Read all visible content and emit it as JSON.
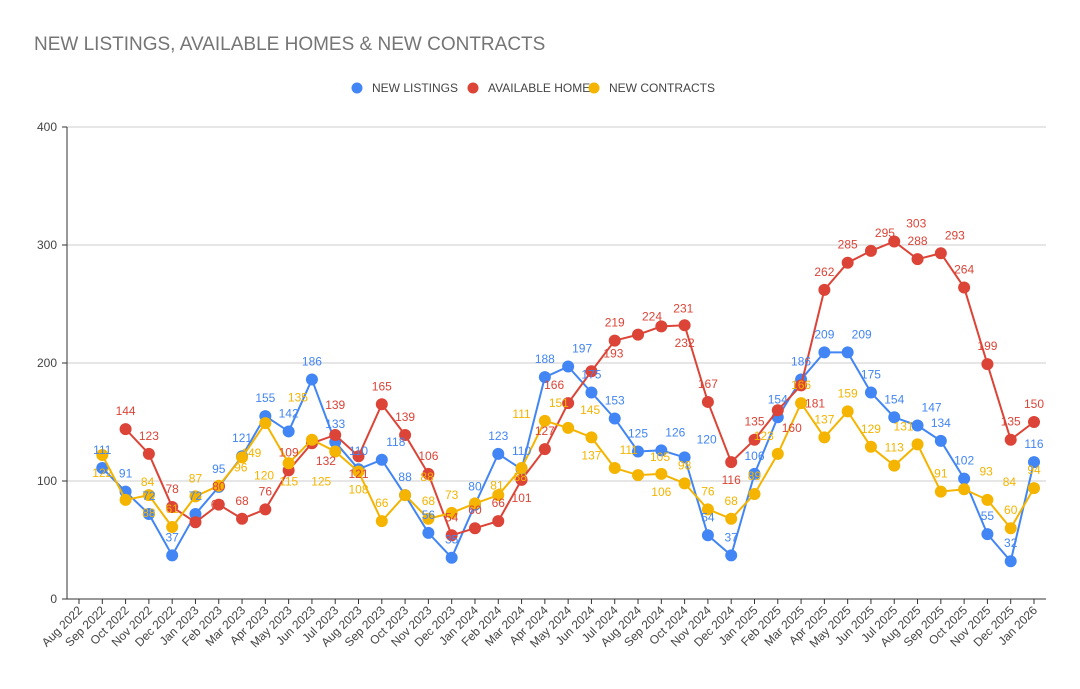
{
  "chart_data": {
    "type": "line",
    "title": "NEW LISTINGS, AVAILABLE HOMES & NEW CONTRACTS",
    "xlabel": "",
    "ylabel": "",
    "ylim": [
      0,
      400
    ],
    "yticks": [
      0,
      100,
      200,
      300,
      400
    ],
    "grid": true,
    "legend": "top-center",
    "categories": [
      "Aug 2022",
      "Sep 2022",
      "Oct 2022",
      "Nov 2022",
      "Dec 2022",
      "Jan 2023",
      "Feb 2023",
      "Mar 2023",
      "Apr 2023",
      "May 2023",
      "Jun 2023",
      "Jul 2023",
      "Aug 2023",
      "Sep 2023",
      "Oct 2023",
      "Nov 2023",
      "Dec 2023",
      "Jan 2024",
      "Feb 2024",
      "Mar 2024",
      "Apr 2024",
      "May 2024",
      "Jun 2024",
      "Jul 2024",
      "Aug 2024",
      "Sep 2024",
      "Oct 2024",
      "Nov 2024",
      "Dec 2024",
      "Jan 2025",
      "Feb 2025",
      "Mar 2025",
      "Apr 2025",
      "May 2025",
      "Jun 2025",
      "Jul 2025",
      "Aug 2025",
      "Sep 2025",
      "Oct 2025",
      "Nov 2025",
      "Dec 2025",
      "Jan 2026"
    ],
    "series": [
      {
        "name": "NEW LISTINGS",
        "color": "#4285f4",
        "values": [
          null,
          111,
          91,
          72,
          37,
          72,
          95,
          121,
          155,
          142,
          186,
          133,
          110,
          118,
          88,
          56,
          35,
          80,
          123,
          110,
          188,
          197,
          175,
          153,
          125,
          126,
          120,
          54,
          37,
          106,
          154,
          186,
          209,
          209,
          175,
          154,
          147,
          134,
          102,
          55,
          32,
          116
        ]
      },
      {
        "name": "AVAILABLE HOMES",
        "color": "#db4437",
        "values": [
          null,
          null,
          144,
          123,
          78,
          65,
          80,
          68,
          76,
          109,
          132,
          139,
          121,
          165,
          139,
          106,
          54,
          60,
          66,
          101,
          127,
          166,
          193,
          219,
          224,
          231,
          232,
          167,
          116,
          135,
          160,
          181,
          262,
          285,
          295,
          303,
          288,
          293,
          264,
          199,
          135,
          150
        ]
      },
      {
        "name": "NEW CONTRACTS",
        "color": "#f4b400",
        "values": [
          null,
          122,
          84,
          88,
          61,
          87,
          96,
          120,
          149,
          115,
          135,
          125,
          108,
          66,
          88,
          68,
          73,
          81,
          88,
          111,
          151,
          145,
          137,
          111,
          105,
          106,
          98,
          76,
          68,
          89,
          123,
          166,
          137,
          159,
          129,
          113,
          131,
          91,
          93,
          84,
          60,
          94
        ]
      }
    ]
  }
}
